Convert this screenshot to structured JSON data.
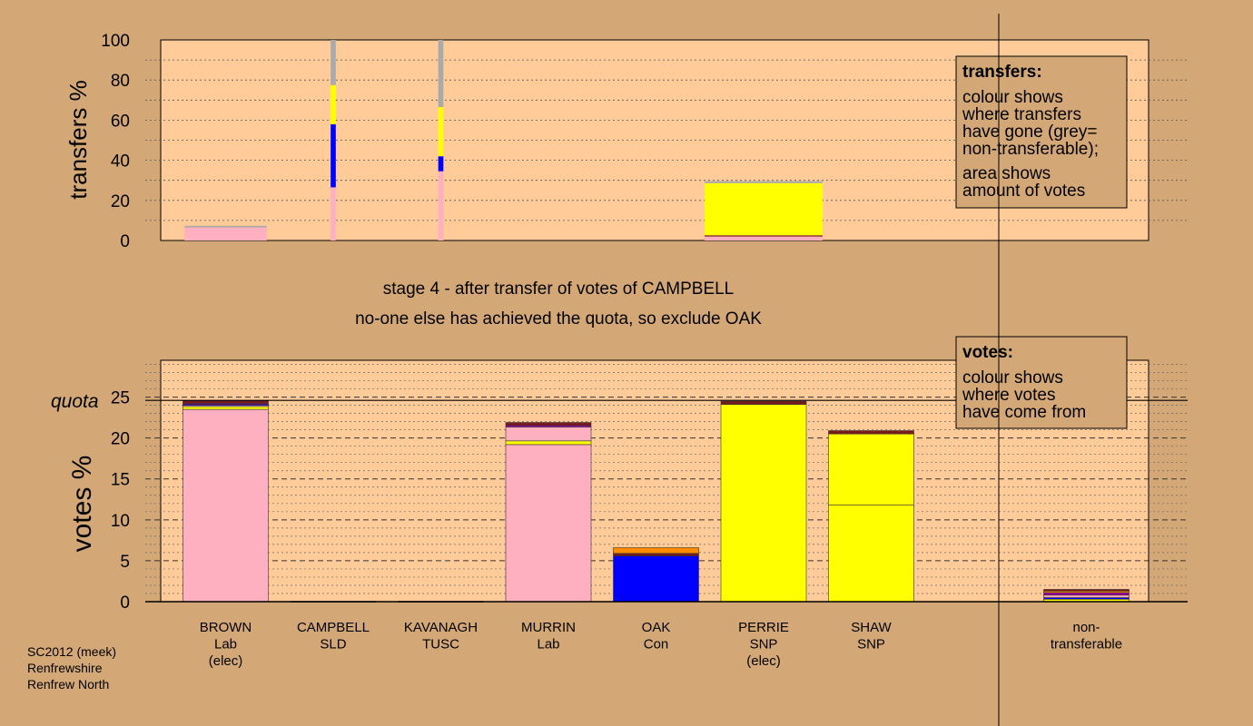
{
  "colors": {
    "background": "#d4a876",
    "plot_area": "#ffcc99",
    "lab": "#ffb0c0",
    "snp": "#ffff00",
    "con": "#0000ff",
    "tusc": "#7b1a1a",
    "sld": "#ff8c00",
    "other": "#a000a0",
    "non_transferable": "#aaaaaa"
  },
  "chart_data": [
    {
      "type": "bar",
      "ylabel": "transfers %",
      "ylim": [
        0,
        100
      ],
      "yticks": [
        0,
        20,
        40,
        60,
        80,
        100
      ],
      "legend": {
        "title": "transfers:",
        "lines": [
          "colour shows",
          "where transfers",
          "have gone (grey=",
          "non-transferable);",
          "area shows",
          "amount of votes"
        ]
      },
      "columns": [
        {
          "candidate": "BROWN",
          "votes_transferred": 1.6,
          "segments": [
            {
              "party": "lab",
              "value": 6.5
            },
            {
              "party": "non_transferable",
              "value": 0.8
            }
          ]
        },
        {
          "candidate": "CAMPBELL",
          "votes_transferred": 0.1,
          "segments": [
            {
              "party": "lab",
              "value": 26.5
            },
            {
              "party": "con",
              "value": 31.5
            },
            {
              "party": "snp",
              "value": 19.5
            },
            {
              "party": "non_transferable",
              "value": 22.5
            }
          ]
        },
        {
          "candidate": "KAVANAGH",
          "votes_transferred": 0.1,
          "segments": [
            {
              "party": "lab",
              "value": 34.5
            },
            {
              "party": "con",
              "value": 7.5
            },
            {
              "party": "snp",
              "value": 24.5
            },
            {
              "party": "non_transferable",
              "value": 33.5
            }
          ]
        },
        {
          "candidate": "MURRIN",
          "votes_transferred": 0,
          "segments": []
        },
        {
          "candidate": "OAK",
          "votes_transferred": 0,
          "segments": []
        },
        {
          "candidate": "PERRIE",
          "votes_transferred": 2.3,
          "segments": [
            {
              "party": "lab",
              "value": 2.0
            },
            {
              "party": "tusc",
              "value": 0.6
            },
            {
              "party": "snp",
              "value": 26.0
            },
            {
              "party": "non_transferable",
              "value": 1.0
            }
          ]
        },
        {
          "candidate": "SHAW",
          "votes_transferred": 0,
          "segments": []
        }
      ]
    },
    {
      "type": "bar",
      "ylabel": "votes %",
      "ylim": [
        0,
        29.5
      ],
      "yticks": [
        0,
        5,
        10,
        15,
        20,
        25
      ],
      "quota": 24.6,
      "quota_label": "quota",
      "legend": {
        "title": "votes:",
        "lines": [
          "colour shows",
          "where votes",
          "have come from"
        ]
      },
      "stage_text": "stage 4 - after transfer of votes of CAMPBELL",
      "action_text": "no-one else has achieved the quota, so exclude OAK",
      "categories": [
        {
          "name": "BROWN",
          "party": "Lab",
          "note": "(elec)"
        },
        {
          "name": "CAMPBELL",
          "party": "SLD",
          "note": ""
        },
        {
          "name": "KAVANAGH",
          "party": "TUSC",
          "note": ""
        },
        {
          "name": "MURRIN",
          "party": "Lab",
          "note": ""
        },
        {
          "name": "OAK",
          "party": "Con",
          "note": ""
        },
        {
          "name": "PERRIE",
          "party": "SNP",
          "note": "(elec)"
        },
        {
          "name": "SHAW",
          "party": "SNP",
          "note": ""
        },
        {
          "name": "",
          "party": "",
          "note": ""
        },
        {
          "name": "non-",
          "party": "transferable",
          "note": ""
        }
      ],
      "stacks": [
        [
          {
            "party": "lab",
            "value": 23.5
          },
          {
            "party": "snp",
            "value": 0.35
          },
          {
            "party": "lab",
            "value": 0.2
          },
          {
            "party": "con",
            "value": 0.05
          },
          {
            "party": "other",
            "value": 0.15
          },
          {
            "party": "tusc",
            "value": 0.3
          }
        ],
        [
          {
            "party": "sld",
            "value": 0.05
          }
        ],
        [
          {
            "party": "tusc",
            "value": 0.05
          }
        ],
        [
          {
            "party": "lab",
            "value": 19.2
          },
          {
            "party": "snp",
            "value": 0.45
          },
          {
            "party": "lab",
            "value": 1.7
          },
          {
            "party": "other",
            "value": 0.2
          },
          {
            "party": "tusc",
            "value": 0.35
          }
        ],
        [
          {
            "party": "con",
            "value": 5.6
          },
          {
            "party": "tusc",
            "value": 0.3
          },
          {
            "party": "sld",
            "value": 0.7
          }
        ],
        [
          {
            "party": "snp",
            "value": 24.1
          },
          {
            "party": "tusc",
            "value": 0.4
          }
        ],
        [
          {
            "party": "snp",
            "value": 11.8
          },
          {
            "party": "snp",
            "value": 8.7
          },
          {
            "party": "tusc",
            "value": 0.4
          }
        ],
        [],
        [
          {
            "party": "snp",
            "value": 0.3
          },
          {
            "party": "con",
            "value": 0.2
          },
          {
            "party": "lab",
            "value": 0.3
          },
          {
            "party": "other",
            "value": 0.3
          },
          {
            "party": "sld",
            "value": 0.2
          },
          {
            "party": "tusc",
            "value": 0.2
          }
        ]
      ]
    }
  ],
  "footer": {
    "line1": "SC2012 (meek)",
    "line2": "Renfrewshire",
    "line3": "Renfrew North"
  }
}
